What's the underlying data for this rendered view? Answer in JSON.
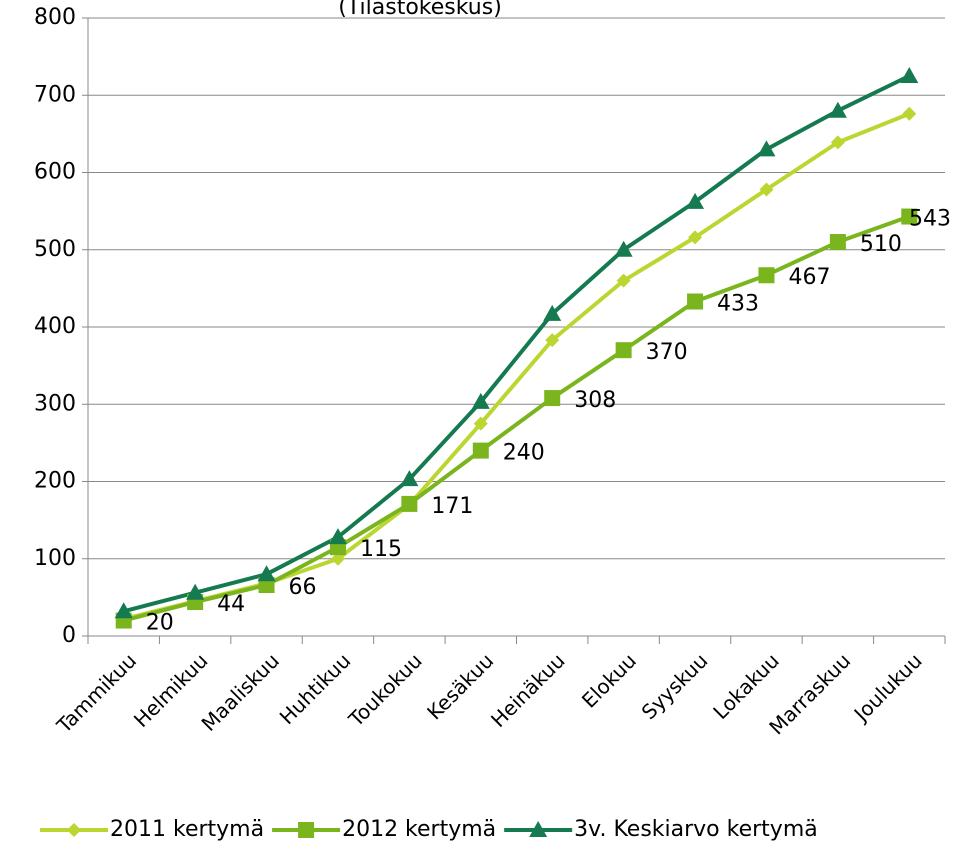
{
  "chart_data": {
    "type": "line",
    "title": "(Tilastokeskus)",
    "categories": [
      "Tammikuu",
      "Helmikuu",
      "Maaliskuu",
      "Huhtikuu",
      "Toukokuu",
      "Kesäkuu",
      "Heinäkuu",
      "Elokuu",
      "Syyskuu",
      "Lokakuu",
      "Marraskuu",
      "Joulukuu"
    ],
    "series": [
      {
        "name": "2011 kertymä",
        "color": "#bcd631",
        "marker": "diamond",
        "values": [
          22,
          45,
          68,
          100,
          170,
          275,
          383,
          460,
          516,
          578,
          639,
          676
        ]
      },
      {
        "name": "2012 kertymä",
        "color": "#7ab51d",
        "marker": "square",
        "data_labels": true,
        "values": [
          20,
          44,
          66,
          115,
          171,
          240,
          308,
          370,
          433,
          467,
          510,
          543
        ]
      },
      {
        "name": "3v. Keskiarvo kertymä",
        "color": "#157a50",
        "marker": "triangle",
        "values": [
          32,
          56,
          80,
          128,
          203,
          303,
          417,
          500,
          562,
          630,
          680,
          725
        ]
      }
    ],
    "ylim": [
      0,
      800
    ],
    "yticks": [
      0,
      100,
      200,
      300,
      400,
      500,
      600,
      700,
      800
    ],
    "grid": true,
    "legend": "bottom"
  }
}
